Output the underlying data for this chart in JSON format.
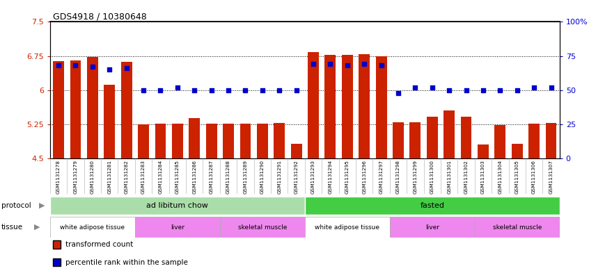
{
  "title": "GDS4918 / 10380648",
  "samples": [
    "GSM1131278",
    "GSM1131279",
    "GSM1131280",
    "GSM1131281",
    "GSM1131282",
    "GSM1131283",
    "GSM1131284",
    "GSM1131285",
    "GSM1131286",
    "GSM1131287",
    "GSM1131288",
    "GSM1131289",
    "GSM1131290",
    "GSM1131291",
    "GSM1131292",
    "GSM1131293",
    "GSM1131294",
    "GSM1131295",
    "GSM1131296",
    "GSM1131297",
    "GSM1131298",
    "GSM1131299",
    "GSM1131300",
    "GSM1131301",
    "GSM1131302",
    "GSM1131303",
    "GSM1131304",
    "GSM1131305",
    "GSM1131306",
    "GSM1131307"
  ],
  "bar_values": [
    6.63,
    6.65,
    6.73,
    6.12,
    6.62,
    5.25,
    5.27,
    5.27,
    5.38,
    5.27,
    5.27,
    5.27,
    5.27,
    5.28,
    4.82,
    6.83,
    6.77,
    6.77,
    6.79,
    6.75,
    5.3,
    5.3,
    5.42,
    5.55,
    5.42,
    4.8,
    5.23,
    4.82,
    5.27,
    5.28
  ],
  "percentile_values": [
    68,
    68,
    67,
    65,
    66,
    50,
    50,
    52,
    50,
    50,
    50,
    50,
    50,
    50,
    50,
    69,
    69,
    68,
    69,
    68,
    48,
    52,
    52,
    50,
    50,
    50,
    50,
    50,
    52,
    52
  ],
  "ylim_left": [
    4.5,
    7.5
  ],
  "ylim_right": [
    0,
    100
  ],
  "yticks_left": [
    4.5,
    5.25,
    6.0,
    6.75,
    7.5
  ],
  "yticks_right": [
    0,
    25,
    50,
    75,
    100
  ],
  "ytick_labels_left": [
    "4.5",
    "5.25",
    "6",
    "6.75",
    "7.5"
  ],
  "ytick_labels_right": [
    "0",
    "25",
    "50",
    "75",
    "100%"
  ],
  "bar_color": "#cc2200",
  "dot_color": "#0000cc",
  "background_color": "#ffffff",
  "protocol_chow_color": "#aaddaa",
  "protocol_fasted_color": "#44cc44",
  "tissue_white_color": "#ffffff",
  "tissue_pink_color": "#ee88ee",
  "label_transformed": "transformed count",
  "label_percentile": "percentile rank within the sample",
  "xticklabel_bg": "#dddddd"
}
